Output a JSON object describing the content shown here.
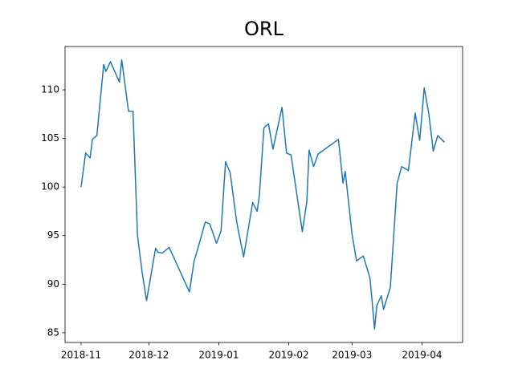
{
  "chart_data": {
    "type": "line",
    "title": "ORL",
    "x": [
      0,
      2,
      4,
      5,
      7,
      10,
      11,
      13,
      17,
      18,
      21,
      23,
      25,
      27,
      29,
      31,
      33,
      34,
      36,
      39,
      48,
      50,
      52,
      55,
      57,
      60,
      62,
      64,
      66,
      69,
      72,
      76,
      78,
      79,
      81,
      83,
      85,
      89,
      91,
      93,
      98,
      100,
      101,
      103,
      105,
      114,
      116,
      117,
      120,
      122,
      125,
      128,
      130,
      131,
      133,
      134,
      137,
      140,
      142,
      145,
      148,
      150,
      152,
      154,
      156,
      158,
      161
    ],
    "series": [
      {
        "name": "ORL",
        "color": "#1f77b4",
        "values": [
          100.0,
          103.5,
          103.0,
          104.9,
          105.3,
          112.6,
          111.9,
          112.9,
          110.8,
          113.1,
          107.8,
          107.8,
          95.0,
          91.3,
          88.3,
          91.0,
          93.7,
          93.3,
          93.2,
          93.8,
          89.2,
          92.3,
          93.9,
          96.4,
          96.2,
          94.2,
          95.5,
          102.6,
          101.5,
          96.3,
          92.8,
          98.4,
          97.5,
          99.2,
          106.1,
          106.5,
          103.9,
          108.2,
          103.5,
          103.3,
          95.4,
          98.5,
          103.8,
          102.1,
          103.4,
          104.9,
          100.4,
          101.6,
          95.2,
          92.4,
          92.9,
          90.6,
          85.4,
          87.8,
          88.8,
          87.4,
          89.7,
          100.4,
          102.1,
          101.7,
          107.6,
          104.8,
          110.2,
          107.6,
          103.7,
          105.3,
          104.6
        ]
      }
    ],
    "xlim": [
      -7.1,
      169
    ],
    "xticks": [
      {
        "value": 0,
        "label": "2018-11"
      },
      {
        "value": 30,
        "label": "2018-12"
      },
      {
        "value": 61,
        "label": "2019-01"
      },
      {
        "value": 92,
        "label": "2019-02"
      },
      {
        "value": 120,
        "label": "2019-03"
      },
      {
        "value": 151,
        "label": "2019-04"
      }
    ],
    "ylim": [
      84.0,
      114.46
    ],
    "yticks": [
      85,
      90,
      95,
      100,
      105,
      110
    ]
  }
}
